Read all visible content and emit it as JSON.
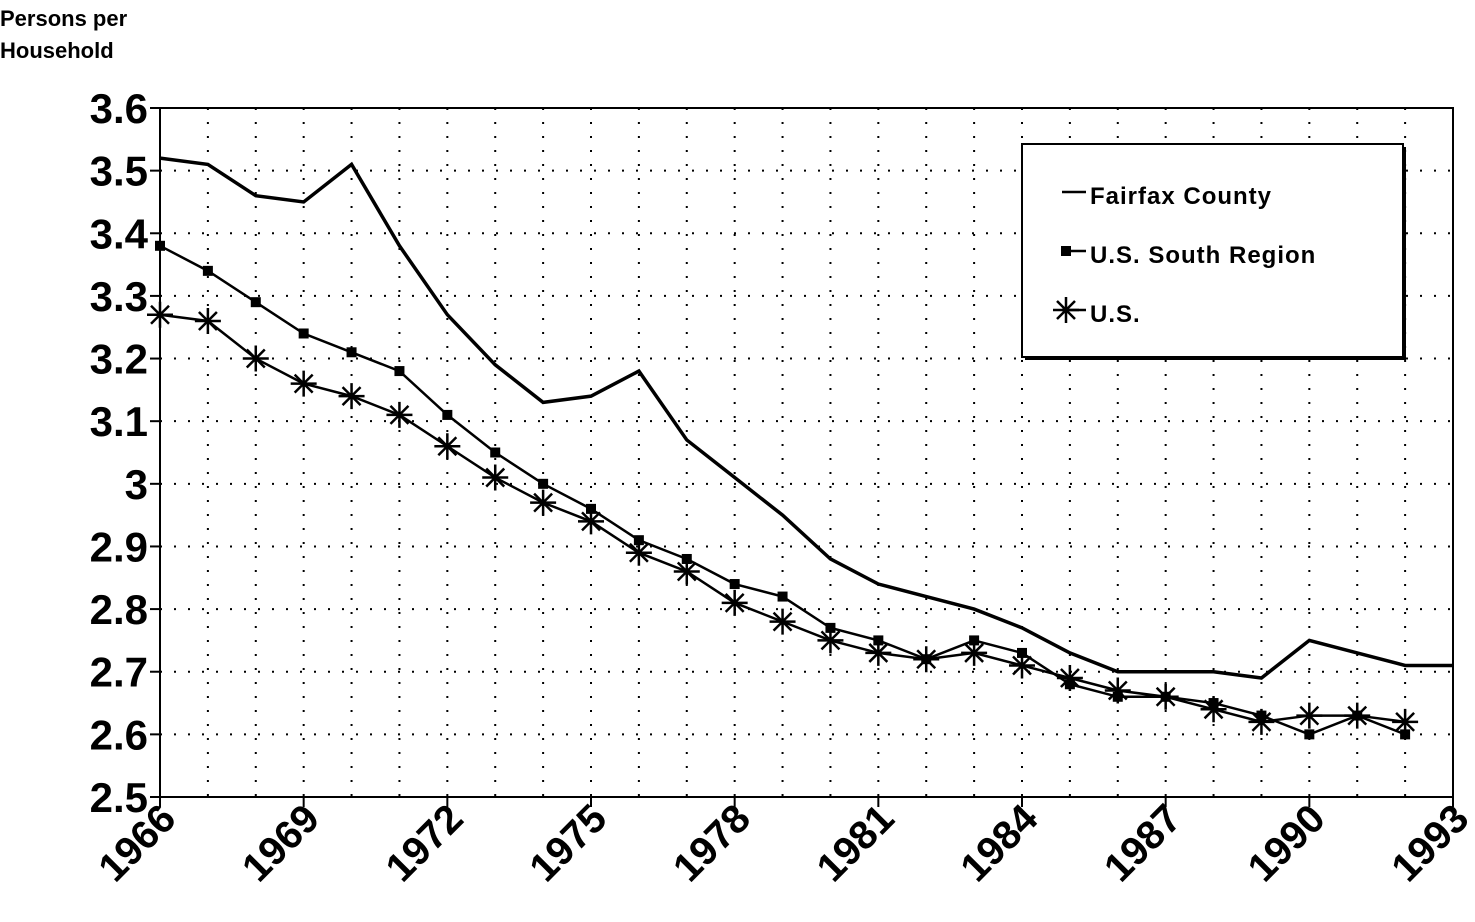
{
  "chart_data": {
    "type": "line",
    "y_label": [
      "Persons per",
      "Household"
    ],
    "x": [
      1966,
      1967,
      1968,
      1969,
      1970,
      1971,
      1972,
      1973,
      1974,
      1975,
      1976,
      1977,
      1978,
      1979,
      1980,
      1981,
      1982,
      1983,
      1984,
      1985,
      1986,
      1987,
      1988,
      1989,
      1990,
      1991,
      1992,
      1993
    ],
    "series": [
      {
        "name": "Fairfax County",
        "color": "#000000",
        "marker": "none",
        "values": [
          3.52,
          3.51,
          3.46,
          3.45,
          3.51,
          3.38,
          3.27,
          3.19,
          3.13,
          3.14,
          3.18,
          3.07,
          3.01,
          2.95,
          2.88,
          2.84,
          2.82,
          2.8,
          2.77,
          2.73,
          2.7,
          2.7,
          2.7,
          2.69,
          2.75,
          2.73,
          2.71,
          2.71
        ]
      },
      {
        "name": "U.S. South Region",
        "color": "#000000",
        "marker": "square",
        "values": [
          3.38,
          3.34,
          3.29,
          3.24,
          3.21,
          3.18,
          3.11,
          3.05,
          3.0,
          2.96,
          2.91,
          2.88,
          2.84,
          2.82,
          2.77,
          2.75,
          2.72,
          2.75,
          2.73,
          2.68,
          2.66,
          2.66,
          2.65,
          2.63,
          2.6,
          2.63,
          2.6,
          null
        ]
      },
      {
        "name": "U.S.",
        "color": "#000000",
        "marker": "asterisk",
        "values": [
          3.27,
          3.26,
          3.2,
          3.16,
          3.14,
          3.11,
          3.06,
          3.01,
          2.97,
          2.94,
          2.89,
          2.86,
          2.81,
          2.78,
          2.75,
          2.73,
          2.72,
          2.73,
          2.71,
          2.69,
          2.67,
          2.66,
          2.64,
          2.62,
          2.63,
          2.63,
          2.62,
          null
        ]
      }
    ],
    "xlim": [
      1966,
      1993
    ],
    "xticks": [
      1966,
      1969,
      1972,
      1975,
      1978,
      1981,
      1984,
      1987,
      1990,
      1993
    ],
    "ylim": [
      2.5,
      3.6
    ],
    "yticks": [
      2.5,
      2.6,
      2.7,
      2.8,
      2.9,
      3,
      3.1,
      3.2,
      3.3,
      3.4,
      3.5,
      3.6
    ],
    "grid": true,
    "legend": "upper right"
  }
}
